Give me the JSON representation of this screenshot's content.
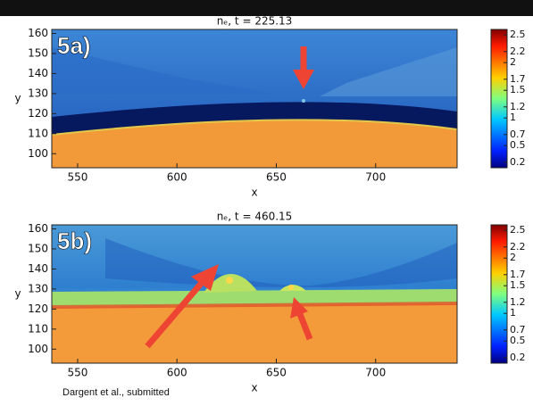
{
  "chart_data": [
    {
      "type": "heatmap",
      "title": "nₑ, t = 225.13",
      "panel_label": "5a)",
      "xlabel": "x",
      "ylabel": "y",
      "xlim": [
        537,
        741
      ],
      "ylim": [
        93,
        162
      ],
      "xticks": [
        550,
        600,
        650,
        700
      ],
      "yticks": [
        100,
        110,
        120,
        130,
        140,
        150,
        160
      ],
      "clim": [
        0.1,
        2.6
      ],
      "cticks": [
        2.5,
        2.2,
        2.0,
        1.7,
        1.5,
        1.2,
        1.0,
        0.7,
        0.5,
        0.2
      ]
    },
    {
      "type": "heatmap",
      "title": "nₑ, t = 460.15",
      "panel_label": "5b)",
      "xlabel": "x",
      "ylabel": "y",
      "xlim": [
        537,
        741
      ],
      "ylim": [
        93,
        162
      ],
      "xticks": [
        550,
        600,
        650,
        700
      ],
      "yticks": [
        100,
        110,
        120,
        130,
        140,
        150,
        160
      ],
      "clim": [
        0.1,
        2.6
      ],
      "cticks": [
        2.5,
        2.2,
        2.0,
        1.7,
        1.5,
        1.2,
        1.0,
        0.7,
        0.5,
        0.2
      ]
    }
  ],
  "credit": "Dargent et al., submitted"
}
